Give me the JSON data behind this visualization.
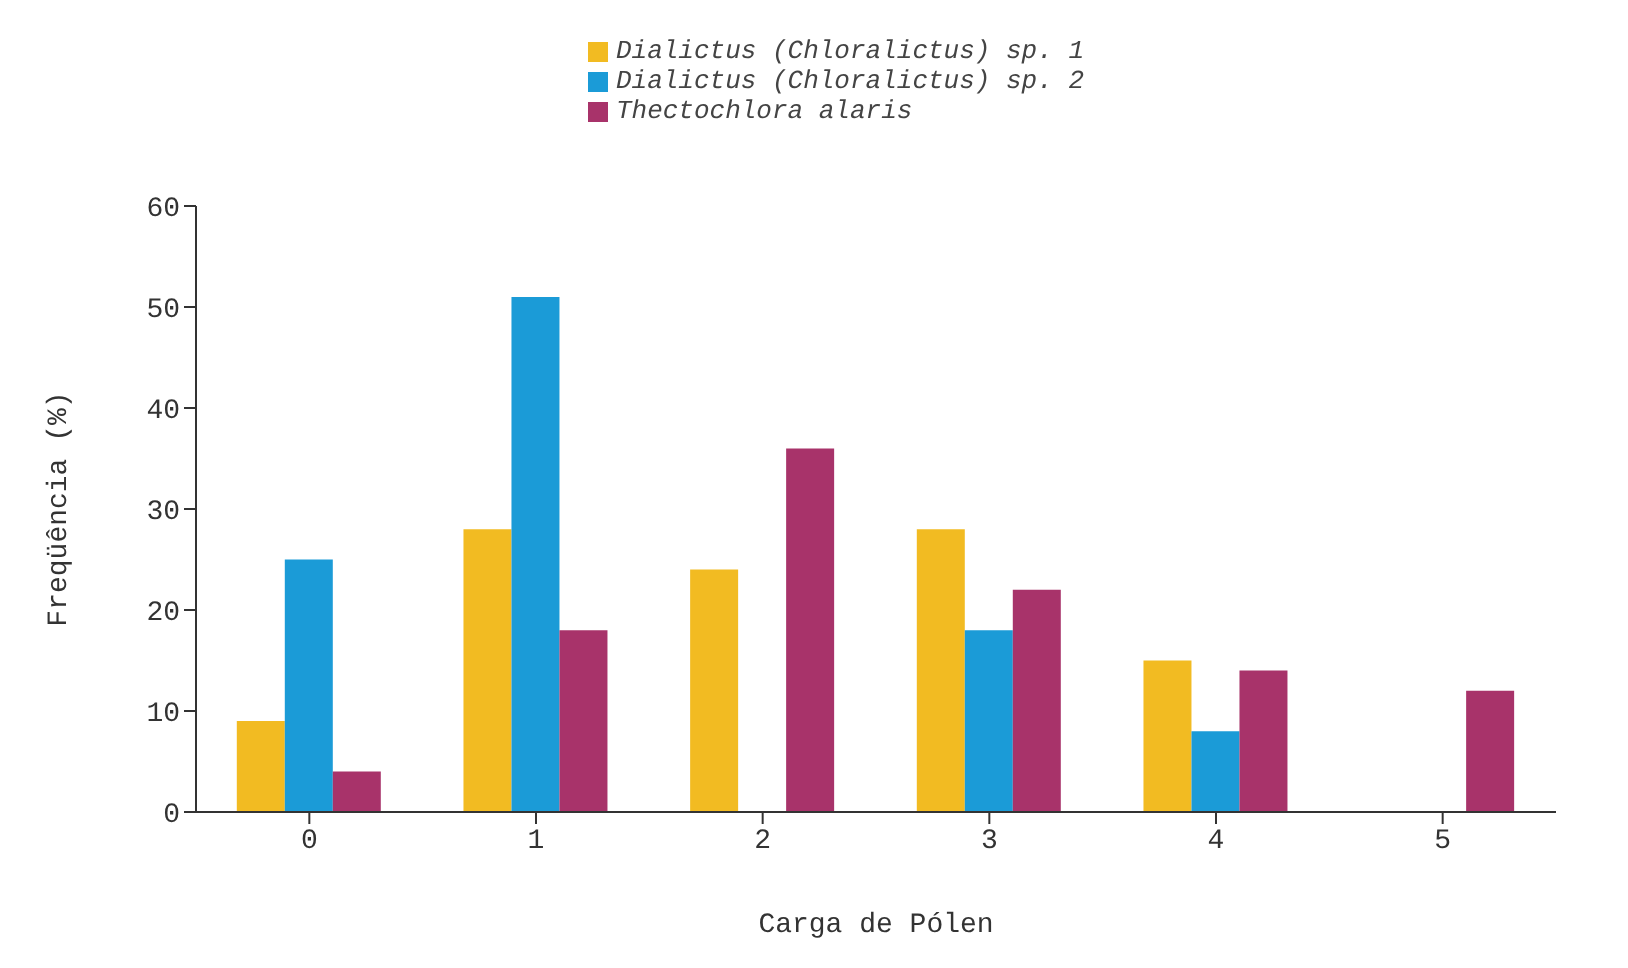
{
  "chart_data": {
    "type": "bar",
    "xlabel": "Carga de Pólen",
    "ylabel": "Freqüência (%)",
    "categories": [
      "0",
      "1",
      "2",
      "3",
      "4",
      "5"
    ],
    "series": [
      {
        "name": "Dialictus (Chloralictus) sp. 1",
        "color": "#f2bb22",
        "values": [
          9,
          28,
          24,
          28,
          15,
          0
        ]
      },
      {
        "name": "Dialictus (Chloralictus) sp. 2",
        "color": "#1b9bd7",
        "values": [
          25,
          51,
          0,
          18,
          8,
          0
        ]
      },
      {
        "name": "Thectochlora alaris",
        "color": "#a8336a",
        "values": [
          4,
          18,
          36,
          22,
          14,
          12
        ]
      }
    ],
    "ylim": [
      0,
      60
    ],
    "yticks": [
      0,
      10,
      20,
      30,
      40,
      50,
      60
    ],
    "grid": false,
    "legend": "top"
  }
}
